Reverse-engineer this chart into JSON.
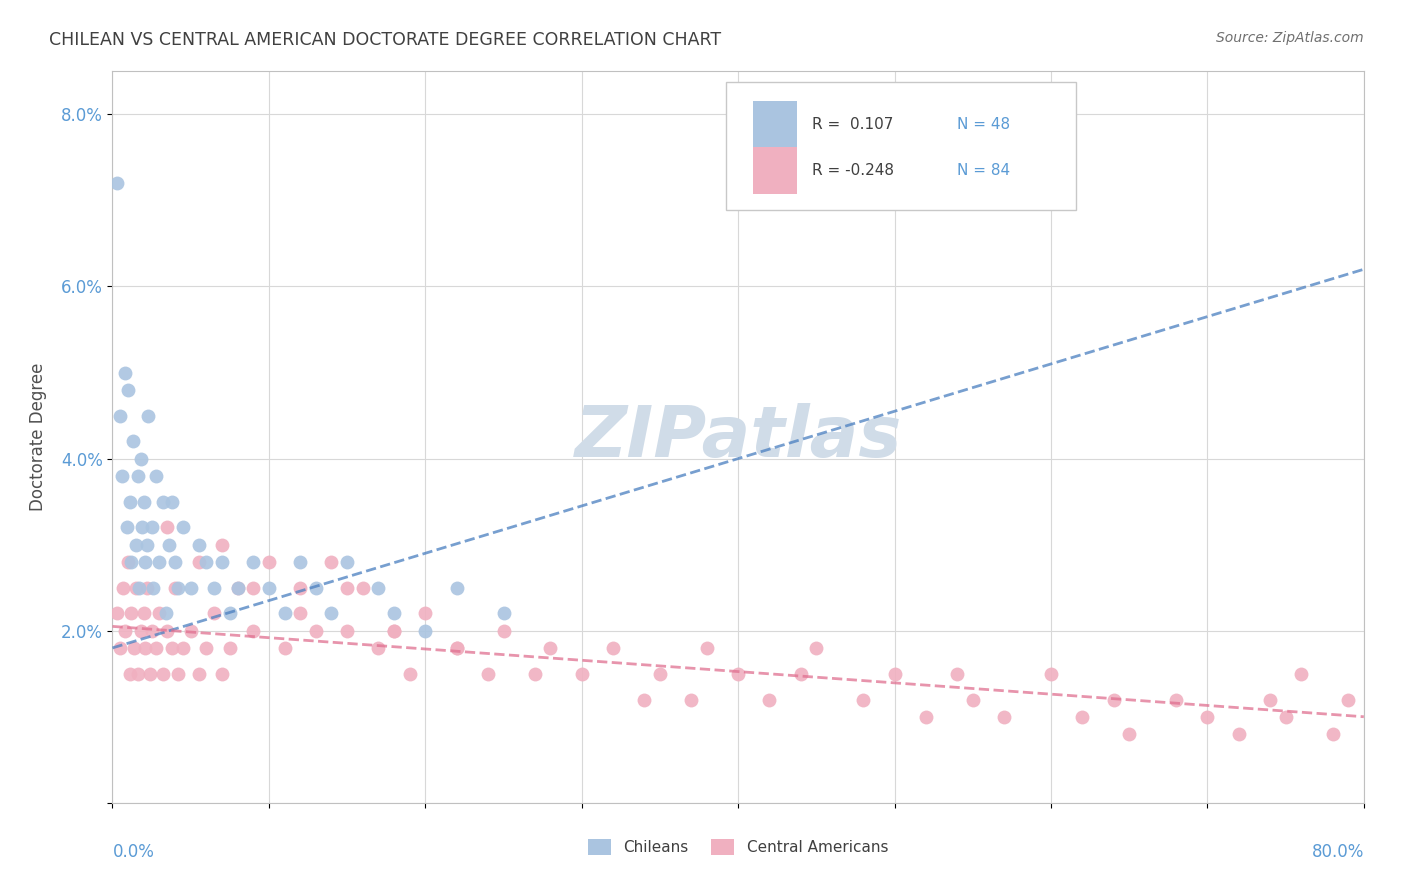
{
  "title": "CHILEAN VS CENTRAL AMERICAN DOCTORATE DEGREE CORRELATION CHART",
  "source": "Source: ZipAtlas.com",
  "ylabel": "Doctorate Degree",
  "blue_color": "#aac4e0",
  "pink_color": "#f0b0c0",
  "blue_line_color": "#4a7fc0",
  "pink_line_color": "#e07090",
  "blue_dash_color": "#a0b8d0",
  "pink_dash_color": "#d8a0b0",
  "watermark_color": "#d0dce8",
  "background_color": "#ffffff",
  "grid_color": "#d8d8d8",
  "tick_color": "#5b9bd5",
  "title_color": "#404040",
  "ylabel_color": "#505050",
  "source_color": "#707070",
  "legend_text_color": "#404040",
  "blue_R": "0.107",
  "blue_N": "48",
  "pink_R": "-0.248",
  "pink_N": "84",
  "blue_trend_x0": 0,
  "blue_trend_y0": 1.8,
  "blue_trend_x1": 80,
  "blue_trend_y1": 6.2,
  "pink_trend_x0": 0,
  "pink_trend_y0": 2.05,
  "pink_trend_x1": 80,
  "pink_trend_y1": 1.0,
  "xlim": [
    0,
    80
  ],
  "ylim": [
    0,
    8.5
  ],
  "ytick_vals": [
    0,
    2,
    4,
    6,
    8
  ],
  "ytick_labels": [
    "",
    "2.0%",
    "4.0%",
    "6.0%",
    "8.0%"
  ],
  "chileans_x": [
    0.3,
    0.5,
    0.6,
    0.8,
    0.9,
    1.0,
    1.1,
    1.2,
    1.3,
    1.5,
    1.6,
    1.7,
    1.8,
    1.9,
    2.0,
    2.1,
    2.2,
    2.3,
    2.5,
    2.6,
    2.8,
    3.0,
    3.2,
    3.4,
    3.6,
    3.8,
    4.0,
    4.2,
    4.5,
    5.0,
    5.5,
    6.0,
    6.5,
    7.0,
    7.5,
    8.0,
    9.0,
    10.0,
    11.0,
    12.0,
    13.0,
    14.0,
    15.0,
    17.0,
    18.0,
    20.0,
    22.0,
    25.0
  ],
  "chileans_y": [
    7.2,
    4.5,
    3.8,
    5.0,
    3.2,
    4.8,
    3.5,
    2.8,
    4.2,
    3.0,
    3.8,
    2.5,
    4.0,
    3.2,
    3.5,
    2.8,
    3.0,
    4.5,
    3.2,
    2.5,
    3.8,
    2.8,
    3.5,
    2.2,
    3.0,
    3.5,
    2.8,
    2.5,
    3.2,
    2.5,
    3.0,
    2.8,
    2.5,
    2.8,
    2.2,
    2.5,
    2.8,
    2.5,
    2.2,
    2.8,
    2.5,
    2.2,
    2.8,
    2.5,
    2.2,
    2.0,
    2.5,
    2.2
  ],
  "central_x": [
    0.3,
    0.5,
    0.7,
    0.8,
    1.0,
    1.1,
    1.2,
    1.4,
    1.5,
    1.6,
    1.8,
    2.0,
    2.1,
    2.2,
    2.4,
    2.5,
    2.8,
    3.0,
    3.2,
    3.5,
    3.8,
    4.0,
    4.2,
    4.5,
    5.0,
    5.5,
    6.0,
    6.5,
    7.0,
    7.5,
    8.0,
    9.0,
    10.0,
    11.0,
    12.0,
    13.0,
    14.0,
    15.0,
    16.0,
    17.0,
    18.0,
    19.0,
    20.0,
    22.0,
    24.0,
    25.0,
    27.0,
    28.0,
    30.0,
    32.0,
    34.0,
    35.0,
    37.0,
    38.0,
    40.0,
    42.0,
    44.0,
    45.0,
    48.0,
    50.0,
    52.0,
    54.0,
    55.0,
    57.0,
    60.0,
    62.0,
    64.0,
    65.0,
    68.0,
    70.0,
    72.0,
    74.0,
    75.0,
    76.0,
    78.0,
    79.0,
    3.5,
    5.5,
    7.0,
    9.0,
    12.0,
    15.0,
    18.0,
    22.0
  ],
  "central_y": [
    2.2,
    1.8,
    2.5,
    2.0,
    2.8,
    1.5,
    2.2,
    1.8,
    2.5,
    1.5,
    2.0,
    2.2,
    1.8,
    2.5,
    1.5,
    2.0,
    1.8,
    2.2,
    1.5,
    2.0,
    1.8,
    2.5,
    1.5,
    1.8,
    2.0,
    1.5,
    1.8,
    2.2,
    1.5,
    1.8,
    2.5,
    2.0,
    2.8,
    1.8,
    2.5,
    2.0,
    2.8,
    2.0,
    2.5,
    1.8,
    2.0,
    1.5,
    2.2,
    1.8,
    1.5,
    2.0,
    1.5,
    1.8,
    1.5,
    1.8,
    1.2,
    1.5,
    1.2,
    1.8,
    1.5,
    1.2,
    1.5,
    1.8,
    1.2,
    1.5,
    1.0,
    1.5,
    1.2,
    1.0,
    1.5,
    1.0,
    1.2,
    0.8,
    1.2,
    1.0,
    0.8,
    1.2,
    1.0,
    1.5,
    0.8,
    1.2,
    3.2,
    2.8,
    3.0,
    2.5,
    2.2,
    2.5,
    2.0,
    1.8
  ]
}
